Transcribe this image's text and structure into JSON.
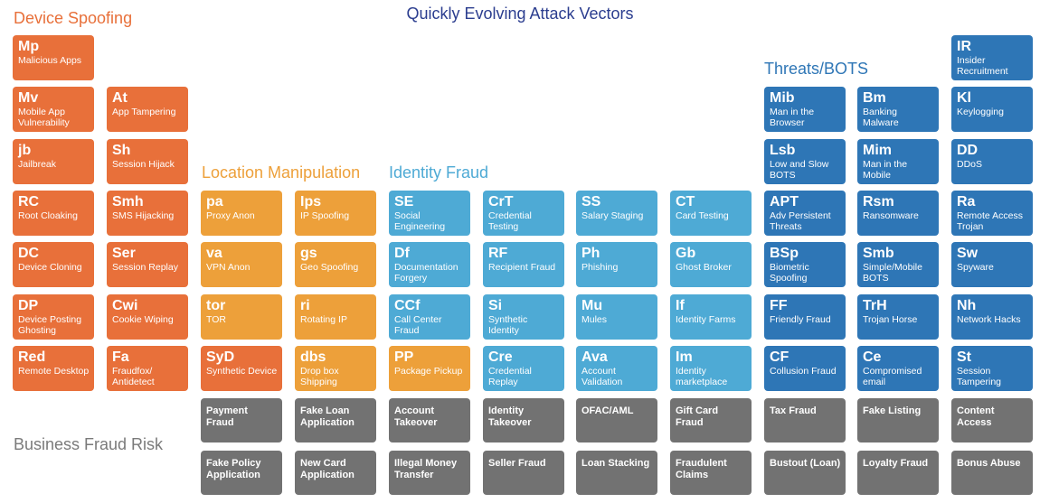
{
  "title": "Quickly Evolving Attack Vectors",
  "colors": {
    "device_spoofing": "#e8703a",
    "location_manipulation": "#eda03a",
    "identity_fraud": "#4eaad5",
    "threats_bots": "#2e76b6",
    "business_fraud": "#727272",
    "synthetic_device": "#e8703a"
  },
  "sections": {
    "device_spoofing": "Device Spoofing",
    "location_manipulation": "Location Manipulation",
    "identity_fraud": "Identity Fraud",
    "threats_bots": "Threats/BOTS",
    "business_fraud_risk": "Business Fraud Risk"
  },
  "tiles": [
    {
      "ab": "Mp",
      "name": "Malicious Apps",
      "cat": "device_spoofing",
      "col": 0,
      "row": 0
    },
    {
      "ab": "Mv",
      "name": "Mobile App Vulnerability",
      "cat": "device_spoofing",
      "col": 0,
      "row": 1
    },
    {
      "ab": "jb",
      "name": "Jailbreak",
      "cat": "device_spoofing",
      "col": 0,
      "row": 2
    },
    {
      "ab": "RC",
      "name": "Root Cloaking",
      "cat": "device_spoofing",
      "col": 0,
      "row": 3
    },
    {
      "ab": "DC",
      "name": "Device Cloning",
      "cat": "device_spoofing",
      "col": 0,
      "row": 4
    },
    {
      "ab": "DP",
      "name": "Device Posting Ghosting",
      "cat": "device_spoofing",
      "col": 0,
      "row": 5
    },
    {
      "ab": "Red",
      "name": "Remote Desktop",
      "cat": "device_spoofing",
      "col": 0,
      "row": 6
    },
    {
      "ab": "At",
      "name": "App Tampering",
      "cat": "device_spoofing",
      "col": 1,
      "row": 1
    },
    {
      "ab": "Sh",
      "name": "Session Hijack",
      "cat": "device_spoofing",
      "col": 1,
      "row": 2
    },
    {
      "ab": "Smh",
      "name": "SMS Hijacking",
      "cat": "device_spoofing",
      "col": 1,
      "row": 3
    },
    {
      "ab": "Ser",
      "name": "Session Replay",
      "cat": "device_spoofing",
      "col": 1,
      "row": 4
    },
    {
      "ab": "Cwi",
      "name": "Cookie Wiping",
      "cat": "device_spoofing",
      "col": 1,
      "row": 5
    },
    {
      "ab": "Fa",
      "name": "Fraudfox/ Antidetect",
      "cat": "device_spoofing",
      "col": 1,
      "row": 6
    },
    {
      "ab": "pa",
      "name": "Proxy Anon",
      "cat": "location_manipulation",
      "col": 2,
      "row": 3
    },
    {
      "ab": "va",
      "name": "VPN Anon",
      "cat": "location_manipulation",
      "col": 2,
      "row": 4
    },
    {
      "ab": "tor",
      "name": "TOR",
      "cat": "location_manipulation",
      "col": 2,
      "row": 5
    },
    {
      "ab": "SyD",
      "name": "Synthetic Device",
      "cat": "synthetic_device",
      "col": 2,
      "row": 6
    },
    {
      "ab": "Ips",
      "name": "IP Spoofing",
      "cat": "location_manipulation",
      "col": 3,
      "row": 3
    },
    {
      "ab": "gs",
      "name": "Geo Spoofing",
      "cat": "location_manipulation",
      "col": 3,
      "row": 4
    },
    {
      "ab": "ri",
      "name": "Rotating IP",
      "cat": "location_manipulation",
      "col": 3,
      "row": 5
    },
    {
      "ab": "dbs",
      "name": "Drop box Shipping",
      "cat": "location_manipulation",
      "col": 3,
      "row": 6
    },
    {
      "ab": "SE",
      "name": "Social Engineering",
      "cat": "identity_fraud",
      "col": 4,
      "row": 3
    },
    {
      "ab": "Df",
      "name": "Documentation Forgery",
      "cat": "identity_fraud",
      "col": 4,
      "row": 4
    },
    {
      "ab": "CCf",
      "name": "Call Center Fraud",
      "cat": "identity_fraud",
      "col": 4,
      "row": 5
    },
    {
      "ab": "PP",
      "name": "Package Pickup",
      "cat": "location_manipulation",
      "col": 4,
      "row": 6
    },
    {
      "ab": "CrT",
      "name": "Credential Testing",
      "cat": "identity_fraud",
      "col": 5,
      "row": 3
    },
    {
      "ab": "RF",
      "name": "Recipient Fraud",
      "cat": "identity_fraud",
      "col": 5,
      "row": 4
    },
    {
      "ab": "Si",
      "name": "Synthetic Identity",
      "cat": "identity_fraud",
      "col": 5,
      "row": 5
    },
    {
      "ab": "Cre",
      "name": "Credential Replay",
      "cat": "identity_fraud",
      "col": 5,
      "row": 6
    },
    {
      "ab": "SS",
      "name": "Salary Staging",
      "cat": "identity_fraud",
      "col": 6,
      "row": 3
    },
    {
      "ab": "Ph",
      "name": "Phishing",
      "cat": "identity_fraud",
      "col": 6,
      "row": 4
    },
    {
      "ab": "Mu",
      "name": "Mules",
      "cat": "identity_fraud",
      "col": 6,
      "row": 5
    },
    {
      "ab": "Ava",
      "name": "Account Validation",
      "cat": "identity_fraud",
      "col": 6,
      "row": 6
    },
    {
      "ab": "CT",
      "name": "Card Testing",
      "cat": "identity_fraud",
      "col": 7,
      "row": 3
    },
    {
      "ab": "Gb",
      "name": "Ghost Broker",
      "cat": "identity_fraud",
      "col": 7,
      "row": 4
    },
    {
      "ab": "If",
      "name": "Identity Farms",
      "cat": "identity_fraud",
      "col": 7,
      "row": 5
    },
    {
      "ab": "Im",
      "name": "Identity marketplace",
      "cat": "identity_fraud",
      "col": 7,
      "row": 6
    },
    {
      "ab": "Mib",
      "name": "Man in the Browser",
      "cat": "threats_bots",
      "col": 8,
      "row": 1
    },
    {
      "ab": "Lsb",
      "name": "Low and Slow BOTS",
      "cat": "threats_bots",
      "col": 8,
      "row": 2
    },
    {
      "ab": "APT",
      "name": "Adv Persistent Threats",
      "cat": "threats_bots",
      "col": 8,
      "row": 3
    },
    {
      "ab": "BSp",
      "name": "Biometric Spoofing",
      "cat": "threats_bots",
      "col": 8,
      "row": 4
    },
    {
      "ab": "FF",
      "name": "Friendly Fraud",
      "cat": "threats_bots",
      "col": 8,
      "row": 5
    },
    {
      "ab": "CF",
      "name": "Collusion Fraud",
      "cat": "threats_bots",
      "col": 8,
      "row": 6
    },
    {
      "ab": "Bm",
      "name": "Banking Malware",
      "cat": "threats_bots",
      "col": 9,
      "row": 1
    },
    {
      "ab": "Mim",
      "name": "Man in the Mobile",
      "cat": "threats_bots",
      "col": 9,
      "row": 2
    },
    {
      "ab": "Rsm",
      "name": "Ransomware",
      "cat": "threats_bots",
      "col": 9,
      "row": 3
    },
    {
      "ab": "Smb",
      "name": "Simple/Mobile BOTS",
      "cat": "threats_bots",
      "col": 9,
      "row": 4
    },
    {
      "ab": "TrH",
      "name": "Trojan Horse",
      "cat": "threats_bots",
      "col": 9,
      "row": 5
    },
    {
      "ab": "Ce",
      "name": "Compromised email",
      "cat": "threats_bots",
      "col": 9,
      "row": 6
    },
    {
      "ab": "IR",
      "name": "Insider Recruitment",
      "cat": "threats_bots",
      "col": 10,
      "row": 0
    },
    {
      "ab": "Kl",
      "name": "Keylogging",
      "cat": "threats_bots",
      "col": 10,
      "row": 1
    },
    {
      "ab": "DD",
      "name": "DDoS",
      "cat": "threats_bots",
      "col": 10,
      "row": 2
    },
    {
      "ab": "Ra",
      "name": "Remote Access Trojan",
      "cat": "threats_bots",
      "col": 10,
      "row": 3
    },
    {
      "ab": "Sw",
      "name": "Spyware",
      "cat": "threats_bots",
      "col": 10,
      "row": 4
    },
    {
      "ab": "Nh",
      "name": "Network Hacks",
      "cat": "threats_bots",
      "col": 10,
      "row": 5
    },
    {
      "ab": "St",
      "name": "Session Tampering",
      "cat": "threats_bots",
      "col": 10,
      "row": 6
    }
  ],
  "business": [
    {
      "name": "Payment Fraud",
      "col": 2,
      "row": 7
    },
    {
      "name": "Fake Loan Application",
      "col": 3,
      "row": 7
    },
    {
      "name": "Account Takeover",
      "col": 4,
      "row": 7
    },
    {
      "name": "Identity Takeover",
      "col": 5,
      "row": 7
    },
    {
      "name": "OFAC/AML",
      "col": 6,
      "row": 7
    },
    {
      "name": "Gift Card Fraud",
      "col": 7,
      "row": 7
    },
    {
      "name": "Tax Fraud",
      "col": 8,
      "row": 7
    },
    {
      "name": "Fake Listing",
      "col": 9,
      "row": 7
    },
    {
      "name": "Content Access",
      "col": 10,
      "row": 7
    },
    {
      "name": "Fake Policy Application",
      "col": 2,
      "row": 8
    },
    {
      "name": "New Card Application",
      "col": 3,
      "row": 8
    },
    {
      "name": "Illegal Money Transfer",
      "col": 4,
      "row": 8
    },
    {
      "name": "Seller Fraud",
      "col": 5,
      "row": 8
    },
    {
      "name": "Loan Stacking",
      "col": 6,
      "row": 8
    },
    {
      "name": "Fraudulent Claims",
      "col": 7,
      "row": 8
    },
    {
      "name": "Bustout (Loan)",
      "col": 8,
      "row": 8
    },
    {
      "name": "Loyalty Fraud",
      "col": 9,
      "row": 8
    },
    {
      "name": "Bonus Abuse",
      "col": 10,
      "row": 8
    }
  ]
}
